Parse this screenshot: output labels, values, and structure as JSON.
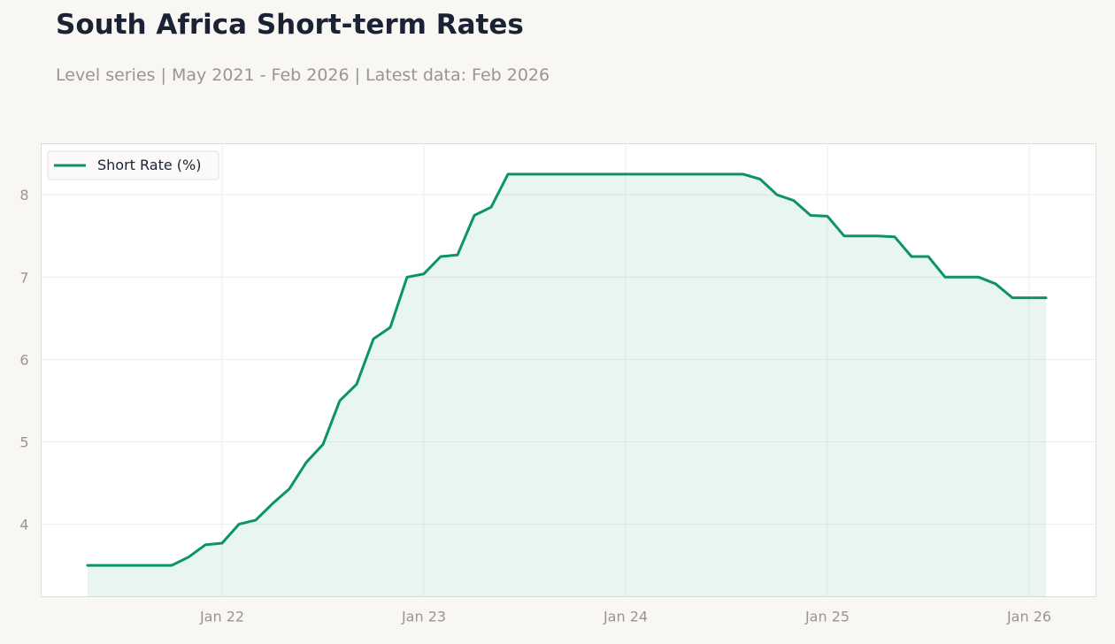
{
  "header": {
    "title": "South Africa Short-term Rates",
    "subtitle": "Level series | May 2021 - Feb 2026 | Latest data: Feb 2026"
  },
  "colors": {
    "line": "#0b9467",
    "fill": "#0b9467",
    "grid": "#eeeeee",
    "plot_bg": "#ffffff",
    "page_bg": "#f8f7f4",
    "frame": "#dddddd",
    "tick_text": "#999590"
  },
  "chart_data": {
    "type": "area",
    "title": "South Africa Short-term Rates",
    "xlabel": "",
    "ylabel": "",
    "x_tick_labels": [
      "Jan 22",
      "Jan 23",
      "Jan 24",
      "Jan 25",
      "Jan 26"
    ],
    "y_ticks": [
      4,
      5,
      6,
      7,
      8
    ],
    "ylim": [
      3.12,
      8.62
    ],
    "grid": true,
    "legend_position": "top-left",
    "series": [
      {
        "name": "Short Rate (%)",
        "x": [
          "2021-05",
          "2021-06",
          "2021-07",
          "2021-08",
          "2021-09",
          "2021-10",
          "2021-11",
          "2021-12",
          "2022-01",
          "2022-02",
          "2022-03",
          "2022-04",
          "2022-05",
          "2022-06",
          "2022-07",
          "2022-08",
          "2022-09",
          "2022-10",
          "2022-11",
          "2022-12",
          "2023-01",
          "2023-02",
          "2023-03",
          "2023-04",
          "2023-05",
          "2023-06",
          "2023-07",
          "2023-08",
          "2023-09",
          "2023-10",
          "2023-11",
          "2023-12",
          "2024-01",
          "2024-02",
          "2024-03",
          "2024-04",
          "2024-05",
          "2024-06",
          "2024-07",
          "2024-08",
          "2024-09",
          "2024-10",
          "2024-11",
          "2024-12",
          "2025-01",
          "2025-02",
          "2025-03",
          "2025-04",
          "2025-05",
          "2025-06",
          "2025-07",
          "2025-08",
          "2025-09",
          "2025-10",
          "2025-11",
          "2025-12",
          "2026-01",
          "2026-02"
        ],
        "values": [
          3.5,
          3.5,
          3.5,
          3.5,
          3.5,
          3.5,
          3.6,
          3.75,
          3.77,
          4.0,
          4.05,
          4.25,
          4.43,
          4.75,
          4.97,
          5.5,
          5.7,
          6.25,
          6.39,
          7.0,
          7.04,
          7.25,
          7.27,
          7.75,
          7.85,
          8.25,
          8.25,
          8.25,
          8.25,
          8.25,
          8.25,
          8.25,
          8.25,
          8.25,
          8.25,
          8.25,
          8.25,
          8.25,
          8.25,
          8.25,
          8.19,
          8.0,
          7.93,
          7.75,
          7.74,
          7.5,
          7.5,
          7.5,
          7.49,
          7.25,
          7.25,
          7.0,
          7.0,
          7.0,
          6.92,
          6.75,
          6.75,
          6.75
        ]
      }
    ]
  }
}
